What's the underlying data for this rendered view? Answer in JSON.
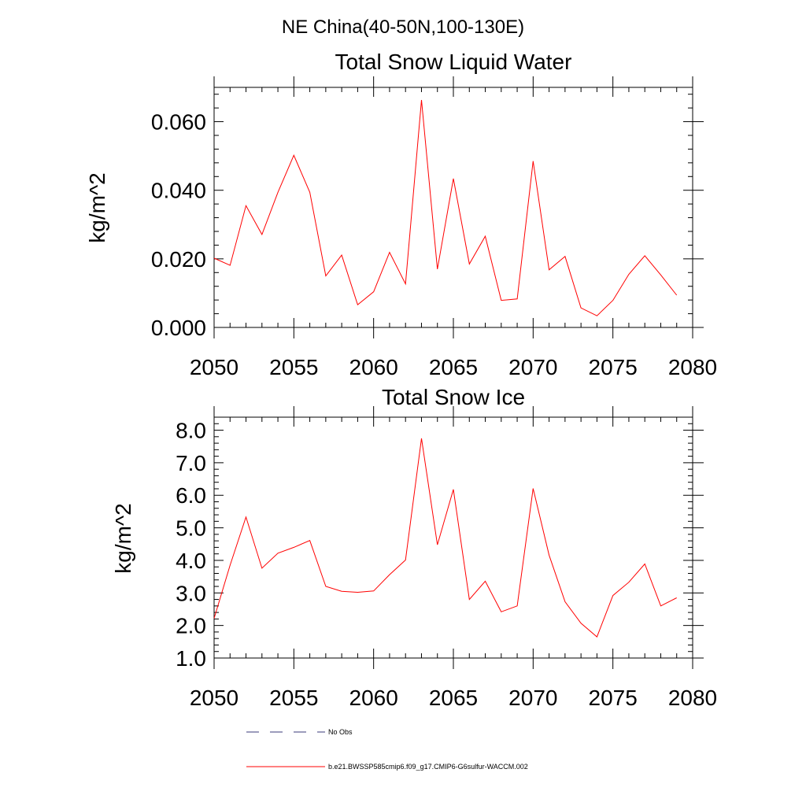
{
  "main_title": "NE China(40-50N,100-130E)",
  "chart_data": [
    {
      "type": "line",
      "title": "Total Snow Liquid Water",
      "xlabel": "",
      "ylabel": "kg/m^2",
      "xlim": [
        2050,
        2080
      ],
      "ylim": [
        0.0,
        0.07
      ],
      "xticks": [
        2050,
        2055,
        2060,
        2065,
        2070,
        2075,
        2080
      ],
      "xtick_labels": [
        "2050",
        "2055",
        "2060",
        "2065",
        "2070",
        "2075",
        "2080"
      ],
      "yticks": [
        0.0,
        0.02,
        0.04,
        0.06
      ],
      "ytick_labels": [
        "0.000",
        "0.020",
        "0.040",
        "0.060"
      ],
      "grid": false,
      "series": [
        {
          "name": "b.e21.BWSSP585cmip6.f09_g17.CMIP6-G6sulfur-WACCM.002",
          "color": "#ff0000",
          "x": [
            2050,
            2051,
            2052,
            2053,
            2054,
            2055,
            2056,
            2057,
            2058,
            2059,
            2060,
            2061,
            2062,
            2063,
            2064,
            2065,
            2066,
            2067,
            2068,
            2069,
            2070,
            2071,
            2072,
            2073,
            2074,
            2075,
            2076,
            2077,
            2078,
            2079
          ],
          "values": [
            0.0202,
            0.0181,
            0.0355,
            0.0271,
            0.0394,
            0.0502,
            0.0394,
            0.015,
            0.0211,
            0.0066,
            0.0104,
            0.0219,
            0.0127,
            0.0663,
            0.017,
            0.0434,
            0.0185,
            0.0266,
            0.0079,
            0.0083,
            0.0485,
            0.0168,
            0.0207,
            0.0057,
            0.0034,
            0.0079,
            0.0155,
            0.0209,
            0.0153,
            0.0094
          ]
        }
      ]
    },
    {
      "type": "line",
      "title": "Total Snow Ice",
      "xlabel": "",
      "ylabel": "kg/m^2",
      "xlim": [
        2050,
        2080
      ],
      "ylim": [
        1.0,
        8.4
      ],
      "xticks": [
        2050,
        2055,
        2060,
        2065,
        2070,
        2075,
        2080
      ],
      "xtick_labels": [
        "2050",
        "2055",
        "2060",
        "2065",
        "2070",
        "2075",
        "2080"
      ],
      "yticks": [
        1.0,
        2.0,
        3.0,
        4.0,
        5.0,
        6.0,
        7.0,
        8.0
      ],
      "ytick_labels": [
        "1.0",
        "2.0",
        "3.0",
        "4.0",
        "5.0",
        "6.0",
        "7.0",
        "8.0"
      ],
      "grid": false,
      "series": [
        {
          "name": "b.e21.BWSSP585cmip6.f09_g17.CMIP6-G6sulfur-WACCM.002",
          "color": "#ff0000",
          "x": [
            2050,
            2051,
            2052,
            2053,
            2054,
            2055,
            2056,
            2057,
            2058,
            2059,
            2060,
            2061,
            2062,
            2063,
            2064,
            2065,
            2066,
            2067,
            2068,
            2069,
            2070,
            2071,
            2072,
            2073,
            2074,
            2075,
            2076,
            2077,
            2078,
            2079
          ],
          "values": [
            2.22,
            3.85,
            5.33,
            3.76,
            4.22,
            4.4,
            4.61,
            3.2,
            3.05,
            3.02,
            3.06,
            3.56,
            4.01,
            7.75,
            4.48,
            6.18,
            2.8,
            3.36,
            2.42,
            2.6,
            6.21,
            4.16,
            2.73,
            2.07,
            1.65,
            2.92,
            3.33,
            3.89,
            2.6,
            2.85
          ]
        }
      ]
    }
  ],
  "legend": {
    "placement": "bottom",
    "items": [
      {
        "label": "No Obs",
        "color": "#3a3a7a",
        "style": "dashed"
      },
      {
        "label": "b.e21.BWSSP585cmip6.f09_g17.CMIP6-G6sulfur-WACCM.002",
        "color": "#ff0000",
        "style": "solid"
      }
    ]
  }
}
